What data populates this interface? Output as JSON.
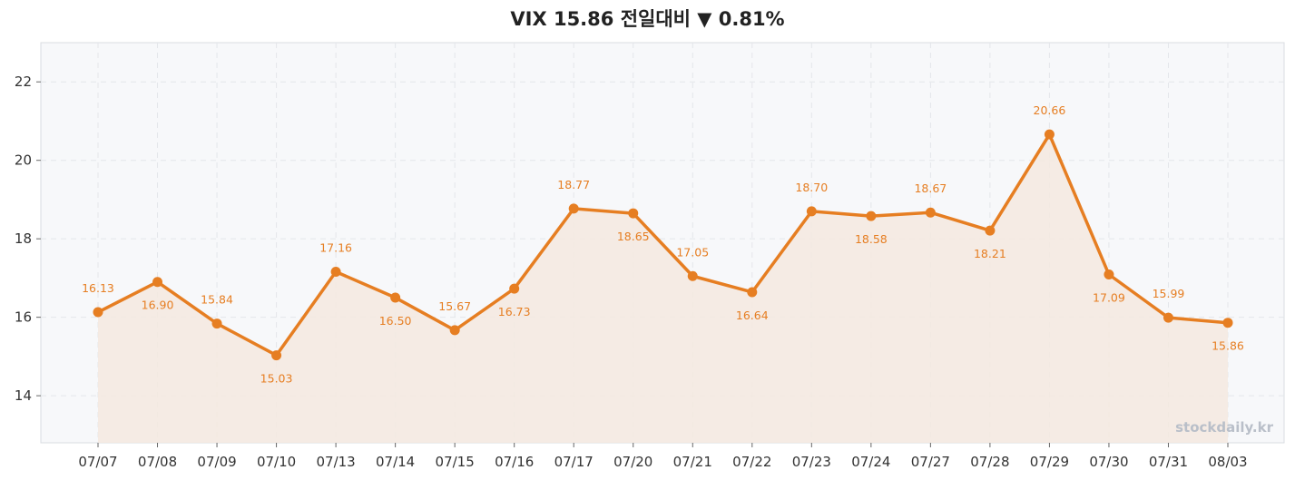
{
  "title": "VIX  15.86  전일대비 ▼ 0.81%",
  "watermark": "stockdaily.kr",
  "colors": {
    "line": "#e67e22",
    "area": "#f4e9df",
    "plot_bg": "#f7f8fa",
    "grid": "#e4e6ea",
    "frame": "#d9dce1"
  },
  "chart_data": {
    "type": "line",
    "categories": [
      "07/07",
      "07/08",
      "07/09",
      "07/10",
      "07/13",
      "07/14",
      "07/15",
      "07/16",
      "07/17",
      "07/20",
      "07/21",
      "07/22",
      "07/23",
      "07/24",
      "07/27",
      "07/28",
      "07/29",
      "07/30",
      "07/31",
      "08/03"
    ],
    "values": [
      16.13,
      16.9,
      15.84,
      15.03,
      17.16,
      16.5,
      15.67,
      16.73,
      18.77,
      18.65,
      17.05,
      16.64,
      18.7,
      18.58,
      18.67,
      18.21,
      20.66,
      17.09,
      15.99,
      15.86
    ],
    "value_labels": [
      "16.13",
      "16.90",
      "15.84",
      "15.03",
      "17.16",
      "16.50",
      "15.67",
      "16.73",
      "18.77",
      "18.65",
      "17.05",
      "16.64",
      "18.70",
      "18.58",
      "18.67",
      "18.21",
      "20.66",
      "17.09",
      "15.99",
      "15.86"
    ],
    "label_position": [
      "above",
      "below",
      "above",
      "below",
      "above",
      "below",
      "above",
      "below",
      "above",
      "below",
      "above",
      "below",
      "above",
      "below",
      "above",
      "below",
      "above",
      "below",
      "above",
      "below"
    ],
    "yticks": [
      14,
      16,
      18,
      20,
      22
    ],
    "ytick_labels": [
      "14",
      "16",
      "18",
      "20",
      "22"
    ],
    "ylim": [
      12.8,
      23.0
    ],
    "grid": true,
    "area_fill": true,
    "legend": "none"
  }
}
